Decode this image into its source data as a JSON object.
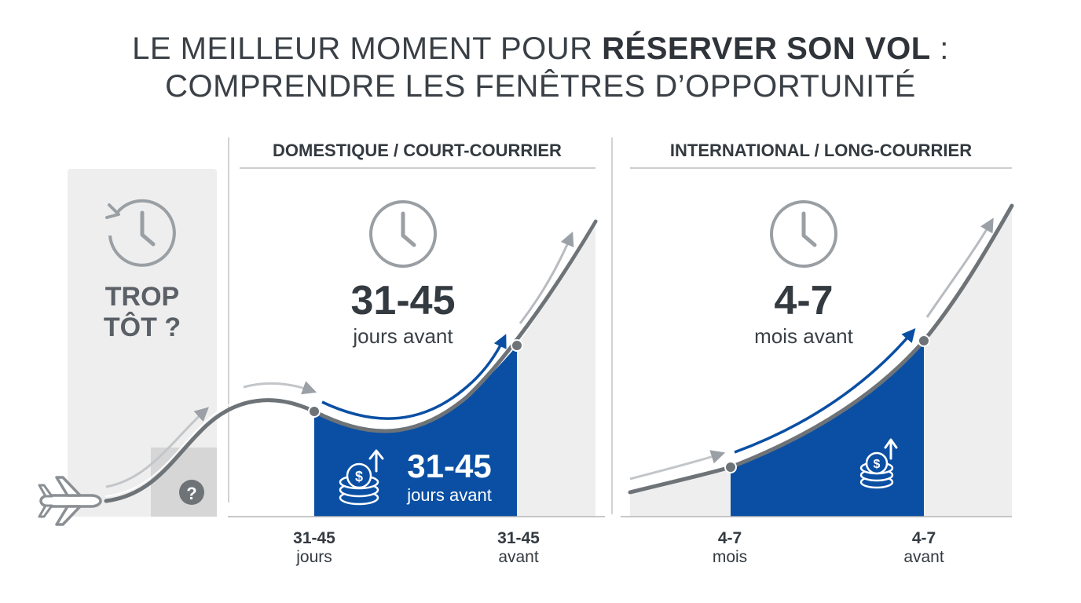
{
  "title": {
    "line1_prefix": "LE MEILLEUR MOMENT POUR ",
    "line1_bold": "RÉSERVER SON VOL",
    "line1_suffix": " :",
    "line2": "COMPRENDRE LES FENÊTRES D’OPPORTUNITÉ"
  },
  "early": {
    "label_line1": "TROP",
    "label_line2": "TÔT ?",
    "help_glyph": "?"
  },
  "domestic": {
    "header": "DOMESTIQUE / COURT-COURRIER",
    "range": "31-45",
    "unit_text": "jours avant",
    "badge_range": "31-45",
    "badge_unit": "jours avant",
    "axis_left_top": "31-45",
    "axis_left_bottom": "jours",
    "axis_right_top": "31-45",
    "axis_right_bottom": "avant"
  },
  "international": {
    "header": "INTERNATIONAL / LONG-COURRIER",
    "range": "4-7",
    "unit_text": "mois avant",
    "axis_left_top": "4-7",
    "axis_left_bottom": "mois",
    "axis_right_top": "4-7",
    "axis_right_bottom": "avant"
  },
  "icons": {
    "airplane": "airplane-icon",
    "history_clock": "history-clock-icon",
    "clock": "clock-icon",
    "coins": "coins-up-icon",
    "help": "help-icon"
  },
  "colors": {
    "accent_blue": "#0a4fa3",
    "curve_gray": "#6e7378",
    "panel_gray": "#eeeeee",
    "text_dark": "#333a40"
  }
}
